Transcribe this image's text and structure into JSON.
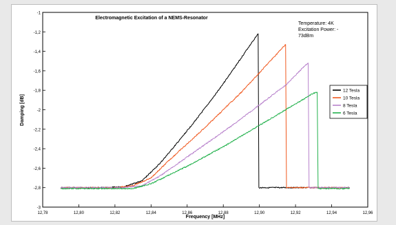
{
  "chart_data": {
    "type": "line",
    "title": "Electromagnetic Excitation of a NEMS-Resonator",
    "annotation": [
      "Temperature: 4K",
      "Excitation Power: -",
      "73dBm"
    ],
    "xlabel": "Frequency [MHz]",
    "ylabel": "Damping [dB]",
    "xlim": [
      12.78,
      12.96
    ],
    "ylim": [
      -3,
      -1
    ],
    "xticks": [
      "12,78",
      "12,80",
      "12,82",
      "12,84",
      "12,86",
      "12,88",
      "12,90",
      "12,92",
      "12,94",
      "12,96"
    ],
    "yticks": [
      "-1",
      "-1,2",
      "-1,4",
      "-1,6",
      "-1,8",
      "-2",
      "-2,2",
      "-2,4",
      "-2,6",
      "-2,8",
      "-3"
    ],
    "grid": false,
    "legend_position": "right",
    "series": [
      {
        "name": "12 Tesla",
        "color": "#000000",
        "points": [
          [
            12.79,
            -2.8
          ],
          [
            12.815,
            -2.8
          ],
          [
            12.825,
            -2.79
          ],
          [
            12.835,
            -2.73
          ],
          [
            12.845,
            -2.55
          ],
          [
            12.855,
            -2.33
          ],
          [
            12.865,
            -2.1
          ],
          [
            12.875,
            -1.86
          ],
          [
            12.885,
            -1.6
          ],
          [
            12.895,
            -1.33
          ],
          [
            12.8993,
            -1.22
          ],
          [
            12.8997,
            -2.8
          ],
          [
            12.92,
            -2.8
          ],
          [
            12.95,
            -2.8
          ]
        ]
      },
      {
        "name": "10 Tesla",
        "color": "#f0581e",
        "points": [
          [
            12.79,
            -2.8
          ],
          [
            12.82,
            -2.8
          ],
          [
            12.83,
            -2.78
          ],
          [
            12.84,
            -2.7
          ],
          [
            12.85,
            -2.52
          ],
          [
            12.86,
            -2.35
          ],
          [
            12.87,
            -2.18
          ],
          [
            12.88,
            -2.0
          ],
          [
            12.89,
            -1.82
          ],
          [
            12.9,
            -1.62
          ],
          [
            12.9145,
            -1.33
          ],
          [
            12.915,
            -2.8
          ],
          [
            12.95,
            -2.8
          ]
        ]
      },
      {
        "name": "8 Tesla",
        "color": "#b882cc",
        "points": [
          [
            12.79,
            -2.8
          ],
          [
            12.825,
            -2.8
          ],
          [
            12.835,
            -2.78
          ],
          [
            12.845,
            -2.68
          ],
          [
            12.855,
            -2.55
          ],
          [
            12.865,
            -2.42
          ],
          [
            12.875,
            -2.29
          ],
          [
            12.885,
            -2.16
          ],
          [
            12.895,
            -2.02
          ],
          [
            12.905,
            -1.88
          ],
          [
            12.915,
            -1.74
          ],
          [
            12.925,
            -1.55
          ],
          [
            12.927,
            -1.52
          ],
          [
            12.9275,
            -2.8
          ],
          [
            12.95,
            -2.8
          ]
        ]
      },
      {
        "name": "6 Tesla",
        "color": "#22b14c",
        "points": [
          [
            12.79,
            -2.81
          ],
          [
            12.83,
            -2.81
          ],
          [
            12.84,
            -2.76
          ],
          [
            12.85,
            -2.67
          ],
          [
            12.86,
            -2.58
          ],
          [
            12.87,
            -2.48
          ],
          [
            12.88,
            -2.38
          ],
          [
            12.89,
            -2.27
          ],
          [
            12.9,
            -2.16
          ],
          [
            12.91,
            -2.05
          ],
          [
            12.92,
            -1.94
          ],
          [
            12.93,
            -1.83
          ],
          [
            12.932,
            -1.82
          ],
          [
            12.9325,
            -2.81
          ],
          [
            12.95,
            -2.81
          ]
        ]
      }
    ]
  }
}
